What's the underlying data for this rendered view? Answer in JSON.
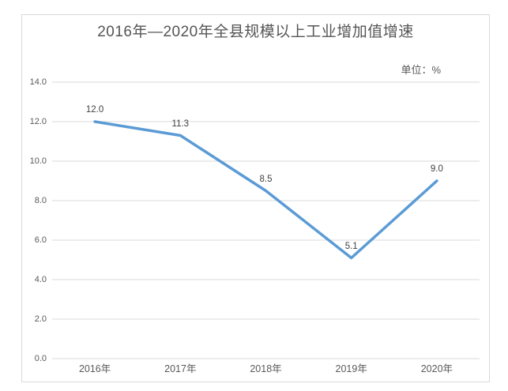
{
  "chart_data": {
    "type": "line",
    "title": "2016年—2020年全县规模以上工业增加值增速",
    "unit_label": "单位：%",
    "categories": [
      "2016年",
      "2017年",
      "2018年",
      "2019年",
      "2020年"
    ],
    "values": [
      12.0,
      11.3,
      8.5,
      5.1,
      9.0
    ],
    "data_labels": [
      "12.0",
      "11.3",
      "8.5",
      "5.1",
      "9.0"
    ],
    "ylim": [
      0,
      14
    ],
    "ytick_step": 2,
    "ytick_labels": [
      "0.0",
      "2.0",
      "4.0",
      "6.0",
      "8.0",
      "10.0",
      "12.0",
      "14.0"
    ],
    "xlabel": "",
    "ylabel": "",
    "grid": true,
    "legend": "none",
    "colors": {
      "line": "#5B9BD5",
      "grid": "#D9D9D9",
      "frame_border": "#D9D9D9",
      "title_text": "#555555",
      "axis_text": "#595959",
      "data_label_text": "#404040",
      "background": "#FFFFFF"
    }
  }
}
